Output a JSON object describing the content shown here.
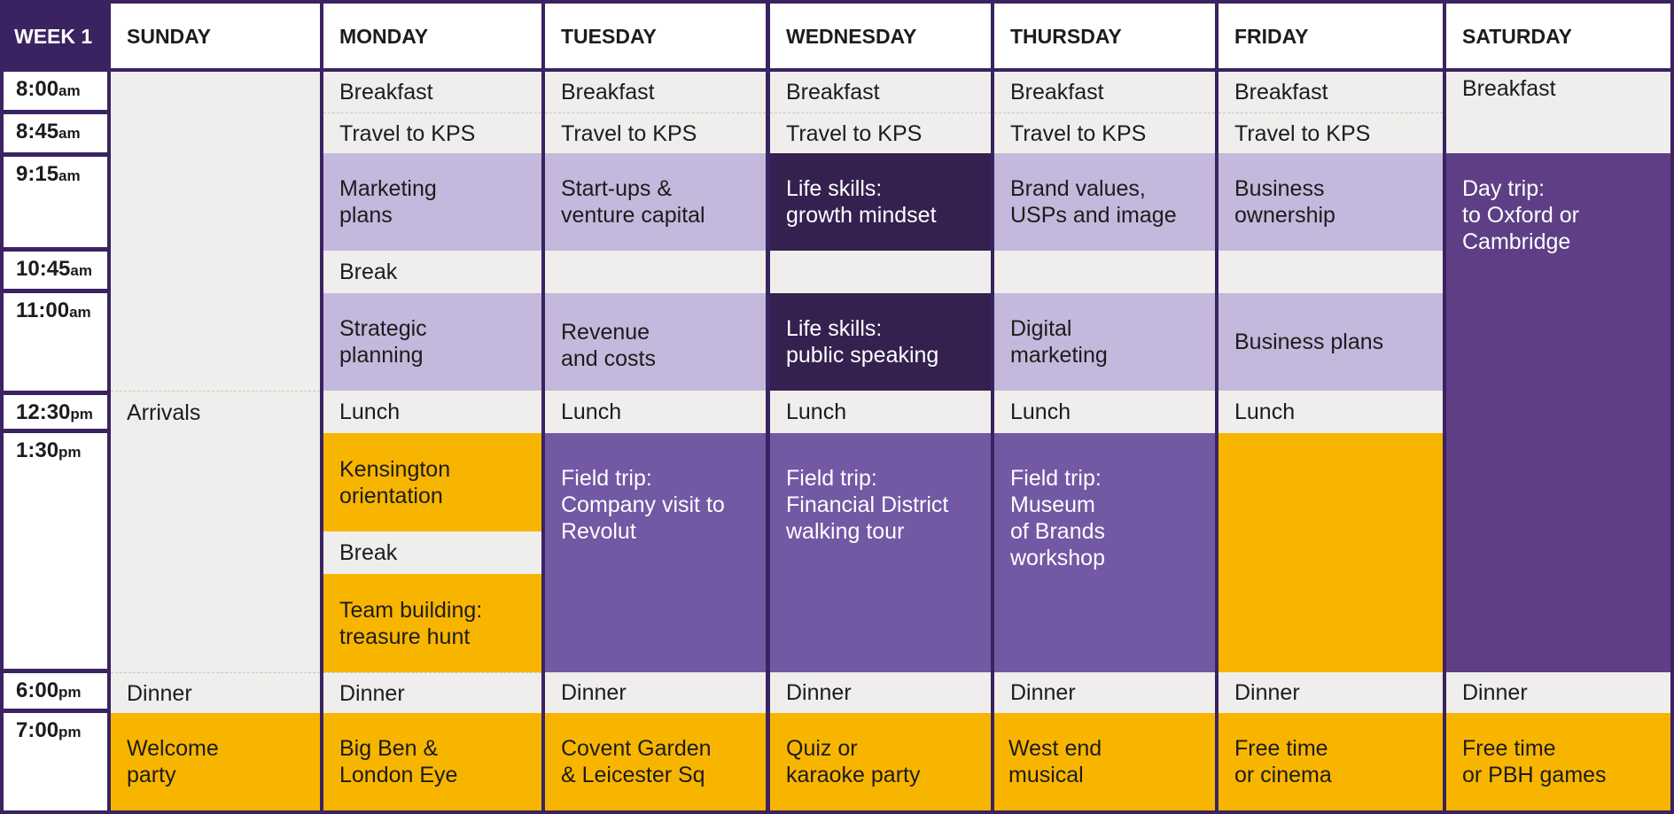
{
  "header": {
    "week": "WEEK 1",
    "days": [
      "SUNDAY",
      "MONDAY",
      "TUESDAY",
      "WEDNESDAY",
      "THURSDAY",
      "FRIDAY",
      "SATURDAY"
    ]
  },
  "times": [
    {
      "hm": "8:00",
      "ampm": "am"
    },
    {
      "hm": "8:45",
      "ampm": "am"
    },
    {
      "hm": "9:15",
      "ampm": "am"
    },
    {
      "hm": "10:45",
      "ampm": "am"
    },
    {
      "hm": "11:00",
      "ampm": "am"
    },
    {
      "hm": "12:30",
      "ampm": "pm"
    },
    {
      "hm": "1:30",
      "ampm": "pm"
    },
    {
      "hm": "6:00",
      "ampm": "pm"
    },
    {
      "hm": "7:00",
      "ampm": "pm"
    }
  ],
  "sunday": {
    "arrivals": "Arrivals",
    "dinner": "Dinner",
    "evening": "Welcome\nparty"
  },
  "monday": {
    "breakfast": "Breakfast",
    "travel": "Travel to KPS",
    "session1": "Marketing\nplans",
    "break1": "Break",
    "session2": "Strategic\nplanning",
    "lunch": "Lunch",
    "afternoon1": "Kensington\norientation",
    "break2": "Break",
    "afternoon2": "Team building:\ntreasure hunt",
    "dinner": "Dinner",
    "evening": "Big Ben &\nLondon Eye"
  },
  "tuesday": {
    "breakfast": "Breakfast",
    "travel": "Travel to KPS",
    "session1": "Start-ups &\nventure capital",
    "session2": "Revenue\nand costs",
    "lunch": "Lunch",
    "afternoon": "Field trip:\nCompany visit to\nRevolut",
    "dinner": "Dinner",
    "evening": "Covent Garden\n& Leicester Sq"
  },
  "wednesday": {
    "breakfast": "Breakfast",
    "travel": "Travel to KPS",
    "session1": "Life skills:\ngrowth mindset",
    "session2": "Life skills:\npublic speaking",
    "lunch": "Lunch",
    "afternoon": "Field trip:\nFinancial District\nwalking tour",
    "dinner": "Dinner",
    "evening": "Quiz or\nkaraoke party"
  },
  "thursday": {
    "breakfast": "Breakfast",
    "travel": "Travel to KPS",
    "session1": "Brand values,\nUSPs and image",
    "session2": "Digital\nmarketing",
    "lunch": "Lunch",
    "afternoon": "Field trip:\nMuseum\nof Brands\nworkshop",
    "dinner": "Dinner",
    "evening": "West end\nmusical"
  },
  "friday": {
    "breakfast": "Breakfast",
    "travel": "Travel to KPS",
    "session1": "Business\nownership",
    "session2": "Business plans",
    "lunch": "Lunch",
    "dinner": "Dinner",
    "evening": "Free time\nor cinema"
  },
  "saturday": {
    "breakfast": "Breakfast",
    "daytrip": "Day trip:\nto Oxford or\nCambridge",
    "dinner": "Dinner",
    "evening": "Free time\nor PBH games"
  },
  "colors": {
    "frame": "#3b2260",
    "grey": "#efeeec",
    "lilac": "#c4b8dc",
    "dark_purple": "#35204f",
    "purple": "#7358a4",
    "plum": "#5e3f86",
    "gold": "#f8b500"
  }
}
